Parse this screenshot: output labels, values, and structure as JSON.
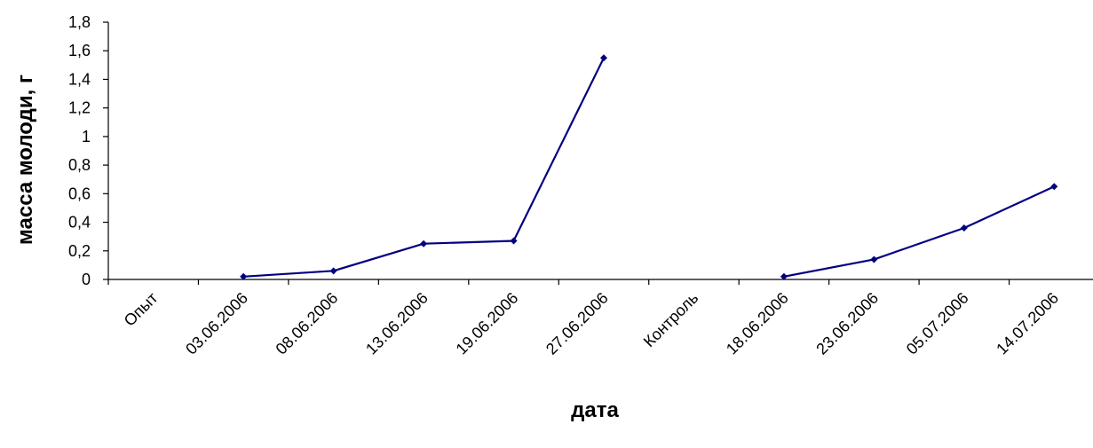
{
  "chart_data": {
    "type": "line",
    "title": "",
    "xlabel": "дата",
    "ylabel": "масса молоди, г",
    "ylim": [
      0,
      1.8
    ],
    "y_ticks": [
      "0",
      "0,2",
      "0,4",
      "0,6",
      "0,8",
      "1",
      "1,2",
      "1,4",
      "1,6",
      "1,8"
    ],
    "categories": [
      "Опыт",
      "03.06.2006",
      "08.06.2006",
      "13.06.2006",
      "19.06.2006",
      "27.06.2006",
      "Контроль",
      "18.06.2006",
      "23.06.2006",
      "05.07.2006",
      "14.07.2006"
    ],
    "series": [
      {
        "values": [
          null,
          0.02,
          0.06,
          0.25,
          0.27,
          1.55,
          null,
          0.02,
          0.14,
          0.36,
          0.65
        ]
      }
    ],
    "line_color": "#000080",
    "grid": false,
    "legend": "none"
  }
}
